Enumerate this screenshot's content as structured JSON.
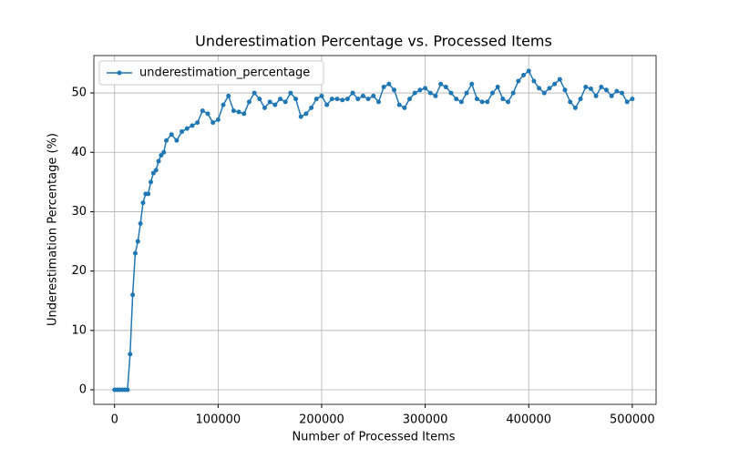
{
  "chart_data": {
    "type": "line",
    "title": "Underestimation Percentage vs. Processed Items",
    "x_label": "Number of Processed Items",
    "y_label": "Underestimation Percentage (%)",
    "x": [
      0,
      2500,
      5000,
      7500,
      10000,
      12500,
      15000,
      17500,
      20000,
      22500,
      25000,
      27500,
      30000,
      32500,
      35000,
      37500,
      40000,
      42500,
      45000,
      47500,
      50000,
      55000,
      60000,
      65000,
      70000,
      75000,
      80000,
      85000,
      90000,
      95000,
      100000,
      105000,
      110000,
      115000,
      120000,
      125000,
      130000,
      135000,
      140000,
      145000,
      150000,
      155000,
      160000,
      165000,
      170000,
      175000,
      180000,
      185000,
      190000,
      195000,
      200000,
      205000,
      210000,
      215000,
      220000,
      225000,
      230000,
      235000,
      240000,
      245000,
      250000,
      255000,
      260000,
      265000,
      270000,
      275000,
      280000,
      285000,
      290000,
      295000,
      300000,
      305000,
      310000,
      315000,
      320000,
      325000,
      330000,
      335000,
      340000,
      345000,
      350000,
      355000,
      360000,
      365000,
      370000,
      375000,
      380000,
      385000,
      390000,
      395000,
      400000,
      405000,
      410000,
      415000,
      420000,
      425000,
      430000,
      435000,
      440000,
      445000,
      450000,
      455000,
      460000,
      465000,
      470000,
      475000,
      480000,
      485000,
      490000,
      495000,
      500000
    ],
    "series": [
      {
        "name": "underestimation_percentage",
        "color": "#1f77b4",
        "values": [
          0,
          0,
          0,
          0,
          0,
          0,
          6,
          16,
          23,
          25,
          28,
          31.5,
          33,
          33,
          35,
          36.5,
          37,
          38.5,
          39.5,
          40,
          42,
          43,
          42,
          43.5,
          44,
          44.5,
          45,
          47,
          46.5,
          45,
          45.5,
          48,
          49.5,
          47,
          46.8,
          46.5,
          48.5,
          50,
          49,
          47.5,
          48.5,
          48,
          49,
          48.5,
          50,
          49,
          46,
          46.5,
          47.5,
          49,
          49.5,
          48,
          49,
          49,
          48.8,
          49,
          50,
          49,
          49.5,
          49,
          49.5,
          48.5,
          51,
          51.5,
          50.5,
          48,
          47.5,
          49,
          50,
          50.5,
          50.8,
          50,
          49.5,
          51.5,
          51,
          50,
          49,
          48.5,
          50,
          51.5,
          49,
          48.5,
          48.5,
          50,
          51,
          49,
          48.5,
          50,
          52,
          53,
          53.7,
          52,
          50.8,
          50,
          50.8,
          51.5,
          52.3,
          50.5,
          48.5,
          47.5,
          49,
          51,
          50.7,
          49.5,
          51,
          50.5,
          49.5,
          50.3,
          50,
          48.5,
          49
        ]
      }
    ],
    "xlim": [
      -20000,
      523000
    ],
    "ylim": [
      -2.45,
      56.3
    ],
    "xticks": [
      0,
      100000,
      200000,
      300000,
      400000,
      500000
    ],
    "yticks": [
      0,
      10,
      20,
      30,
      40,
      50
    ],
    "grid": true,
    "legend": "upper left"
  }
}
